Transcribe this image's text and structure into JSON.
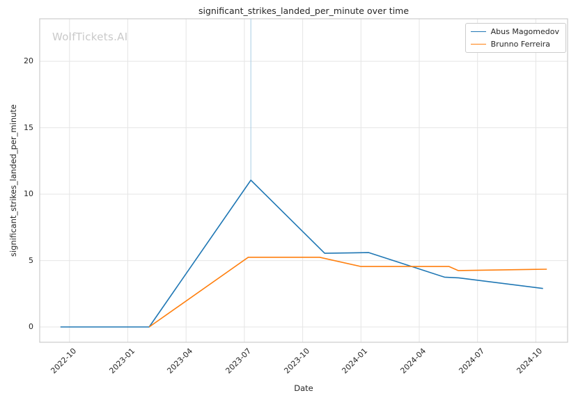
{
  "chart_data": {
    "type": "line",
    "title": "significant_strikes_landed_per_minute over time",
    "xlabel": "Date",
    "ylabel": "significant_strikes_landed_per_minute",
    "watermark": "WolfTickets.AI",
    "grid": true,
    "legend_position": "upper right",
    "x_ticks": [
      "2022-10",
      "2023-01",
      "2023-04",
      "2023-07",
      "2023-10",
      "2024-01",
      "2024-04",
      "2024-07",
      "2024-10"
    ],
    "y_ticks": [
      0,
      5,
      10,
      15,
      20
    ],
    "xlim": [
      "2022-08-15",
      "2024-11-20"
    ],
    "ylim": [
      -1.15,
      23.2
    ],
    "colors": {
      "series1": "#1f77b4",
      "series2": "#ff7f0e",
      "grid": "#e5e5e5",
      "border": "#cbcbcb",
      "spike": "#a8cce4"
    },
    "series": [
      {
        "name": "Abus Magomedov",
        "color": "#1f77b4",
        "points": [
          [
            "2022-09-17",
            0
          ],
          [
            "2023-02-04",
            0
          ],
          [
            "2023-07-11",
            11.05
          ],
          [
            "2023-11-05",
            5.55
          ],
          [
            "2024-01-13",
            5.6
          ],
          [
            "2024-05-10",
            3.75
          ],
          [
            "2024-06-02",
            3.7
          ],
          [
            "2024-10-12",
            2.9
          ]
        ]
      },
      {
        "name": "Brunno Ferreira",
        "color": "#ff7f0e",
        "points": [
          [
            "2023-02-04",
            0
          ],
          [
            "2023-07-07",
            5.25
          ],
          [
            "2023-10-27",
            5.25
          ],
          [
            "2024-01-01",
            4.55
          ],
          [
            "2024-05-17",
            4.55
          ],
          [
            "2024-06-01",
            4.25
          ],
          [
            "2024-10-18",
            4.35
          ]
        ]
      }
    ],
    "annotation_line": {
      "x": "2023-07-11",
      "y_from": 11.05,
      "y_to": 23.2
    }
  }
}
